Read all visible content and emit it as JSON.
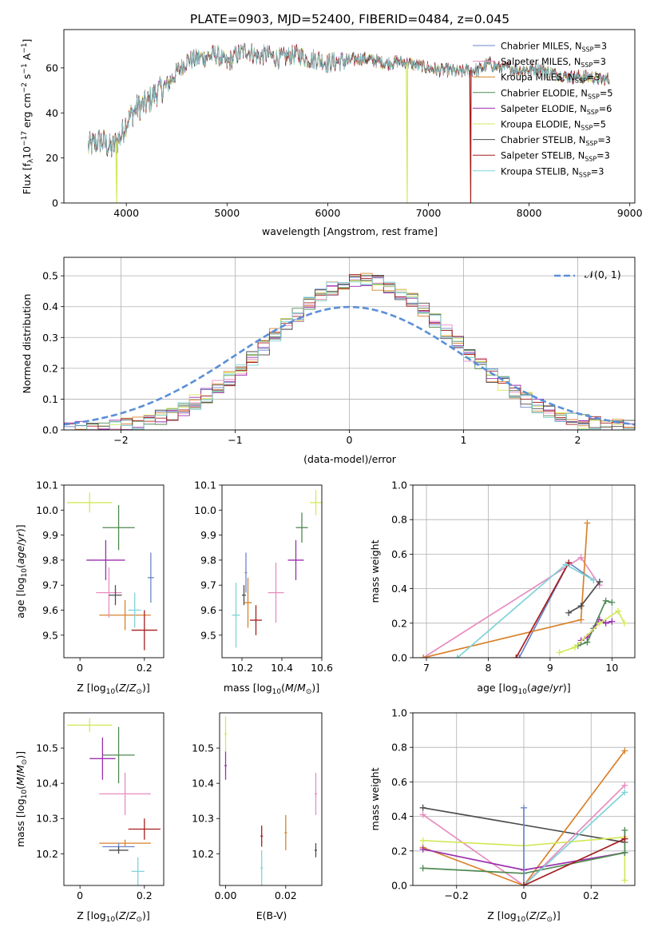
{
  "figure_title": "PLATE=0903, MJD=52400, FIBERID=0484, z=0.045",
  "model_colors": {
    "Chabrier MILES": "#6b86c8",
    "Salpeter MILES": "#e88cc0",
    "Kroupa MILES": "#d9822b",
    "Chabrier ELODIE": "#4f8a52",
    "Salpeter ELODIE": "#9b2fae",
    "Kroupa ELODIE": "#d4e85a",
    "Chabrier STELIB": "#4d4d4d",
    "Salpeter STELIB": "#a61e1e",
    "Kroupa STELIB": "#7fd3d8"
  },
  "legend_models": [
    {
      "key": "Chabrier MILES",
      "label": "Chabrier MILES, N",
      "nssp": "=3"
    },
    {
      "key": "Salpeter MILES",
      "label": "Salpeter MILES, N",
      "nssp": "=3"
    },
    {
      "key": "Kroupa MILES",
      "label": "Kroupa MILES, N",
      "nssp": "=3"
    },
    {
      "key": "Chabrier ELODIE",
      "label": "Chabrier ELODIE, N",
      "nssp": "=5"
    },
    {
      "key": "Salpeter ELODIE",
      "label": "Salpeter ELODIE, N",
      "nssp": "=6"
    },
    {
      "key": "Kroupa ELODIE",
      "label": "Kroupa ELODIE, N",
      "nssp": "=5"
    },
    {
      "key": "Chabrier STELIB",
      "label": "Chabrier STELIB, N",
      "nssp": "=3"
    },
    {
      "key": "Salpeter STELIB",
      "label": "Salpeter STELIB, N",
      "nssp": "=3"
    },
    {
      "key": "Kroupa STELIB",
      "label": "Kroupa STELIB, N",
      "nssp": "=3"
    }
  ],
  "nssp_subscript": "SSP",
  "chart_data": [
    {
      "id": "spectrum",
      "type": "line",
      "xlabel": "wavelength [Angstrom, rest frame]",
      "ylabel": "Flux [f",
      "ylabel_parts": [
        "Flux [f",
        "λ",
        "10",
        "−17",
        " erg cm",
        "−2",
        " s",
        "−1",
        " A",
        "−1",
        "]"
      ],
      "xlim": [
        3380,
        9050
      ],
      "ylim": [
        0,
        77
      ],
      "xticks": [
        4000,
        5000,
        6000,
        7000,
        8000,
        9000
      ],
      "yticks": [
        0,
        20,
        40,
        60
      ],
      "legend_position": "upper-right",
      "continuum_x": [
        3620,
        3750,
        3850,
        3950,
        4000,
        4100,
        4200,
        4300,
        4400,
        4500,
        4600,
        4700,
        4800,
        4900,
        5000,
        5100,
        5200,
        5300,
        5400,
        5500,
        5600,
        5700,
        5800,
        5900,
        6000,
        6100,
        6200,
        6300,
        6400,
        6500,
        6600,
        6700,
        6800,
        6900,
        7000,
        7100,
        7200,
        7300,
        7400,
        7500,
        7600,
        7700,
        7800,
        7900,
        8000,
        8100,
        8200,
        8300,
        8400,
        8500,
        8600,
        8700,
        8800
      ],
      "continuum_y": [
        25,
        28,
        24,
        30,
        36,
        42,
        44,
        49,
        52,
        58,
        63,
        64,
        65,
        66,
        62,
        66,
        68,
        65,
        66,
        64,
        65,
        66,
        64,
        64,
        62,
        63,
        63,
        64,
        64,
        63,
        62,
        63,
        62,
        61,
        60,
        59,
        59,
        58,
        59,
        59,
        62,
        60,
        60,
        59,
        59,
        60,
        58,
        57,
        56,
        56,
        56,
        55,
        55
      ],
      "drops": [
        {
          "model": "Kroupa ELODIE",
          "x": 3905
        },
        {
          "model": "Kroupa ELODIE",
          "x": 6790
        },
        {
          "model": "Salpeter STELIB",
          "x": 7420
        }
      ]
    },
    {
      "id": "residuals",
      "type": "histogram",
      "xlabel": "(data-model)/error",
      "ylabel": "Normed distribution",
      "xlim": [
        -2.5,
        2.5
      ],
      "ylim": [
        0,
        0.56
      ],
      "xticks": [
        -2,
        -1,
        0,
        1,
        2
      ],
      "yticks": [
        0,
        0.1,
        0.2,
        0.3,
        0.4,
        0.5
      ],
      "bin_width": 0.1,
      "grid": true,
      "reference_label": "𝒩(0, 1)",
      "reference_color": "#5b8fd8",
      "legend_position": "upper-right"
    },
    {
      "id": "age-vs-Z",
      "type": "errorbar",
      "xlabel": "Z [log",
      "ylabel": "age  [log",
      "xlim": [
        -0.05,
        0.26
      ],
      "ylim": [
        9.41,
        10.1
      ],
      "xticks": [
        0,
        0.2
      ],
      "yticks": [
        9.5,
        9.6,
        9.7,
        9.8,
        9.9,
        10.0,
        10.1
      ],
      "points": [
        {
          "model": "Kroupa ELODIE",
          "x": 0.03,
          "y": 10.03,
          "xerr": 0.07,
          "yerr": 0.04
        },
        {
          "model": "Chabrier ELODIE",
          "x": 0.12,
          "y": 9.93,
          "xerr": 0.05,
          "yerr": 0.09
        },
        {
          "model": "Salpeter ELODIE",
          "x": 0.08,
          "y": 9.8,
          "xerr": 0.06,
          "yerr": 0.08
        },
        {
          "model": "Kroupa MILES",
          "x": 0.14,
          "y": 9.58,
          "xerr": 0.08,
          "yerr": 0.06
        },
        {
          "model": "Chabrier MILES",
          "x": 0.22,
          "y": 9.73,
          "xerr": 0.01,
          "yerr": 0.1
        },
        {
          "model": "Salpeter MILES",
          "x": 0.09,
          "y": 9.67,
          "xerr": 0.04,
          "yerr": 0.1
        },
        {
          "model": "Chabrier STELIB",
          "x": 0.11,
          "y": 9.66,
          "xerr": 0.02,
          "yerr": 0.04
        },
        {
          "model": "Salpeter STELIB",
          "x": 0.2,
          "y": 9.52,
          "xerr": 0.04,
          "yerr": 0.08
        },
        {
          "model": "Kroupa STELIB",
          "x": 0.17,
          "y": 9.6,
          "xerr": 0.02,
          "yerr": 0.07
        }
      ]
    },
    {
      "id": "age-vs-mass",
      "type": "errorbar",
      "xlabel": "mass [log",
      "ylabel": "",
      "xlim": [
        10.1,
        10.6
      ],
      "ylim": [
        9.41,
        10.1
      ],
      "xticks": [
        10.2,
        10.4,
        10.6
      ],
      "yticks": [
        9.5,
        9.6,
        9.7,
        9.8,
        9.9,
        10.0,
        10.1
      ],
      "points": [
        {
          "model": "Kroupa ELODIE",
          "x": 10.57,
          "y": 10.03,
          "xerr": 0.03,
          "yerr": 0.05
        },
        {
          "model": "Chabrier ELODIE",
          "x": 10.5,
          "y": 9.93,
          "xerr": 0.03,
          "yerr": 0.06
        },
        {
          "model": "Salpeter ELODIE",
          "x": 10.47,
          "y": 9.8,
          "xerr": 0.04,
          "yerr": 0.08
        },
        {
          "model": "Salpeter MILES",
          "x": 10.37,
          "y": 9.67,
          "xerr": 0.04,
          "yerr": 0.12
        },
        {
          "model": "Chabrier MILES",
          "x": 10.22,
          "y": 9.75,
          "xerr": 0.0,
          "yerr": 0.08
        },
        {
          "model": "Kroupa MILES",
          "x": 10.23,
          "y": 9.63,
          "xerr": 0.02,
          "yerr": 0.1
        },
        {
          "model": "Chabrier STELIB",
          "x": 10.21,
          "y": 9.66,
          "xerr": 0.01,
          "yerr": 0.04
        },
        {
          "model": "Salpeter STELIB",
          "x": 10.27,
          "y": 9.56,
          "xerr": 0.03,
          "yerr": 0.06
        },
        {
          "model": "Kroupa STELIB",
          "x": 10.17,
          "y": 9.58,
          "xerr": 0.02,
          "yerr": 0.13
        }
      ]
    },
    {
      "id": "weight-vs-age",
      "type": "line",
      "xlabel": "age  [log",
      "ylabel": "mass weight",
      "xlim": [
        6.78,
        10.37
      ],
      "ylim": [
        0,
        1
      ],
      "xticks": [
        7,
        8,
        9,
        10
      ],
      "yticks": [
        0,
        0.2,
        0.4,
        0.6,
        0.8,
        1.0
      ],
      "grid": true,
      "series": [
        {
          "model": "Chabrier MILES",
          "x": [
            8.5,
            9.3,
            9.7
          ],
          "y": [
            0.0,
            0.55,
            0.45
          ]
        },
        {
          "model": "Salpeter MILES",
          "x": [
            6.95,
            9.5,
            9.8
          ],
          "y": [
            0.0,
            0.58,
            0.42
          ]
        },
        {
          "model": "Kroupa MILES",
          "x": [
            6.95,
            9.5,
            9.6
          ],
          "y": [
            0.0,
            0.22,
            0.78
          ]
        },
        {
          "model": "Chabrier ELODIE",
          "x": [
            9.45,
            9.6,
            9.7,
            9.9,
            10.0
          ],
          "y": [
            0.07,
            0.09,
            0.17,
            0.33,
            0.32
          ]
        },
        {
          "model": "Salpeter ELODIE",
          "x": [
            9.5,
            9.6,
            9.8,
            9.9,
            10.0
          ],
          "y": [
            0.1,
            0.12,
            0.22,
            0.2,
            0.21
          ]
        },
        {
          "model": "Kroupa ELODIE",
          "x": [
            9.15,
            9.4,
            9.8,
            10.1,
            10.2
          ],
          "y": [
            0.03,
            0.06,
            0.2,
            0.27,
            0.2
          ]
        },
        {
          "model": "Chabrier STELIB",
          "x": [
            9.3,
            9.5,
            9.8
          ],
          "y": [
            0.26,
            0.3,
            0.44
          ]
        },
        {
          "model": "Salpeter STELIB",
          "x": [
            8.45,
            9.3
          ],
          "y": [
            0.0,
            0.55
          ]
        },
        {
          "model": "Kroupa STELIB",
          "x": [
            7.5,
            9.25,
            9.7
          ],
          "y": [
            0.0,
            0.54,
            0.45
          ]
        }
      ]
    },
    {
      "id": "mass-vs-Z",
      "type": "errorbar",
      "xlabel": "Z [log",
      "ylabel": "mass [log",
      "xlim": [
        -0.05,
        0.26
      ],
      "ylim": [
        10.11,
        10.6
      ],
      "xticks": [
        0,
        0.2
      ],
      "yticks": [
        10.2,
        10.3,
        10.4,
        10.5
      ],
      "points": [
        {
          "model": "Kroupa ELODIE",
          "x": 0.03,
          "y": 10.565,
          "xerr": 0.07,
          "yerr": 0.02
        },
        {
          "model": "Chabrier ELODIE",
          "x": 0.12,
          "y": 10.48,
          "xerr": 0.05,
          "yerr": 0.08
        },
        {
          "model": "Salpeter ELODIE",
          "x": 0.07,
          "y": 10.47,
          "xerr": 0.04,
          "yerr": 0.06
        },
        {
          "model": "Salpeter MILES",
          "x": 0.14,
          "y": 10.37,
          "xerr": 0.08,
          "yerr": 0.06
        },
        {
          "model": "Salpeter STELIB",
          "x": 0.2,
          "y": 10.27,
          "xerr": 0.05,
          "yerr": 0.03
        },
        {
          "model": "Kroupa MILES",
          "x": 0.14,
          "y": 10.23,
          "xerr": 0.08,
          "yerr": 0.01
        },
        {
          "model": "Chabrier MILES",
          "x": 0.12,
          "y": 10.22,
          "xerr": 0.05,
          "yerr": 0.01
        },
        {
          "model": "Chabrier STELIB",
          "x": 0.12,
          "y": 10.21,
          "xerr": 0.03,
          "yerr": 0.01
        },
        {
          "model": "Kroupa STELIB",
          "x": 0.18,
          "y": 10.15,
          "xerr": 0.02,
          "yerr": 0.04
        }
      ]
    },
    {
      "id": "mass-vs-EBV",
      "type": "errorbar",
      "xlabel": "E(B-V)",
      "ylabel": "",
      "xlim": [
        -0.002,
        0.032
      ],
      "ylim": [
        10.11,
        10.6
      ],
      "xticks": [
        0.0,
        0.02
      ],
      "yticks": [
        10.2,
        10.3,
        10.4,
        10.5
      ],
      "points": [
        {
          "model": "Kroupa ELODIE",
          "x": 0.0,
          "y": 10.54,
          "xerr": 0,
          "yerr": 0.05
        },
        {
          "model": "Salpeter ELODIE",
          "x": 0.0,
          "y": 10.45,
          "xerr": 0,
          "yerr": 0.04
        },
        {
          "model": "Salpeter MILES",
          "x": 0.03,
          "y": 10.37,
          "xerr": 0,
          "yerr": 0.06
        },
        {
          "model": "Salpeter STELIB",
          "x": 0.012,
          "y": 10.25,
          "xerr": 0,
          "yerr": 0.03
        },
        {
          "model": "Kroupa MILES",
          "x": 0.02,
          "y": 10.26,
          "xerr": 0,
          "yerr": 0.05
        },
        {
          "model": "Kroupa STELIB",
          "x": 0.012,
          "y": 10.16,
          "xerr": 0,
          "yerr": 0.05
        },
        {
          "model": "Chabrier STELIB",
          "x": 0.03,
          "y": 10.21,
          "xerr": 0,
          "yerr": 0.02
        }
      ]
    },
    {
      "id": "weight-vs-Z",
      "type": "line",
      "xlabel": "Z [log",
      "ylabel": "mass weight",
      "xlim": [
        -0.33,
        0.33
      ],
      "ylim": [
        0,
        1
      ],
      "xticks": [
        -0.2,
        0.0,
        0.2
      ],
      "yticks": [
        0,
        0.2,
        0.4,
        0.6,
        0.8,
        1.0
      ],
      "grid": true,
      "series": [
        {
          "model": "Chabrier STELIB",
          "x": [
            -0.3,
            0.3
          ],
          "y": [
            0.45,
            0.25
          ]
        },
        {
          "model": "Salpeter MILES",
          "x": [
            -0.3,
            0.0,
            0.3
          ],
          "y": [
            0.41,
            0.0,
            0.58
          ]
        },
        {
          "model": "Kroupa MILES",
          "x": [
            -0.3,
            0.0,
            0.3
          ],
          "y": [
            0.22,
            0.0,
            0.78
          ]
        },
        {
          "model": "Kroupa ELODIE",
          "x": [
            -0.3,
            0.0,
            0.3,
            0.3
          ],
          "y": [
            0.26,
            0.23,
            0.28,
            0.03
          ]
        },
        {
          "model": "Salpeter ELODIE",
          "x": [
            -0.3,
            0.0,
            0.3
          ],
          "y": [
            0.21,
            0.09,
            0.19
          ]
        },
        {
          "model": "Chabrier ELODIE",
          "x": [
            -0.3,
            0.0,
            0.3,
            0.3
          ],
          "y": [
            0.1,
            0.07,
            0.19,
            0.32
          ]
        },
        {
          "model": "Kroupa STELIB",
          "x": [
            0.0,
            0.3
          ],
          "y": [
            0.0,
            0.54
          ]
        },
        {
          "model": "Chabrier MILES",
          "x": [
            0.0,
            0.0
          ],
          "y": [
            0.0,
            0.45
          ]
        },
        {
          "model": "Salpeter STELIB",
          "x": [
            0.0,
            0.3
          ],
          "y": [
            0.0,
            0.27
          ]
        }
      ]
    }
  ]
}
